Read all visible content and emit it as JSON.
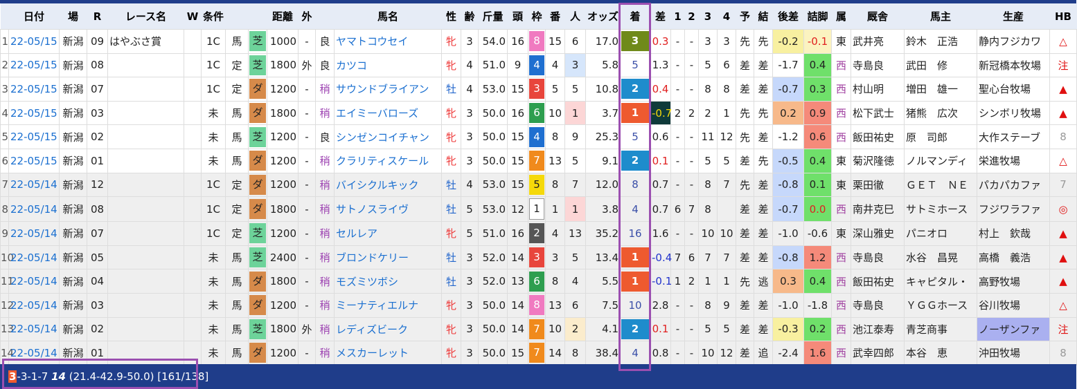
{
  "table": {
    "headers": [
      null,
      "日付",
      "場",
      "R",
      "レース名",
      "W",
      "条件",
      null,
      null,
      "距離",
      "外",
      null,
      "馬名",
      "性",
      "齢",
      "斤量",
      "頭",
      "枠",
      "番",
      "人",
      "オッズ",
      "着",
      "差",
      "1",
      "2",
      "3",
      "4",
      "予",
      "結",
      "後差",
      "詰脚",
      "属",
      "厩舎",
      "馬主",
      "生産",
      "HB"
    ],
    "rows": [
      [
        "1",
        "22-05/15",
        "新潟",
        "09",
        "はやぶさ賞",
        null,
        "1C",
        "馬",
        "芝",
        "1000",
        "-",
        "良",
        "ヤマトコウセイ",
        "牝",
        "3",
        "54.0",
        "16",
        "8",
        "15",
        "6",
        "17.0",
        "3",
        "0.3",
        "-",
        "-",
        "3",
        "3",
        "先",
        "先",
        "-0.2",
        "-0.1",
        "東",
        "武井亮",
        "鈴木　正浩",
        "静内フジカワ",
        "△"
      ],
      [
        "2",
        "22-05/15",
        "新潟",
        "08",
        null,
        null,
        "1C",
        "定",
        "芝",
        "1800",
        "外",
        "良",
        "カツコ",
        "牝",
        "4",
        "51.0",
        "9",
        "4",
        "4",
        "3",
        "5.8",
        "5",
        "1.3",
        "-",
        "-",
        "5",
        "6",
        "差",
        "差",
        "-1.7",
        "0.4",
        "西",
        "寺島良",
        "武田　修",
        "新冠橋本牧場",
        "注"
      ],
      [
        "3",
        "22-05/15",
        "新潟",
        "07",
        null,
        null,
        "1C",
        "定",
        "ダ",
        "1200",
        "-",
        "稍",
        "サウンドブライアン",
        "牡",
        "4",
        "53.0",
        "15",
        "3",
        "5",
        "5",
        "10.8",
        "2",
        "0.4",
        "-",
        "-",
        "8",
        "8",
        "差",
        "差",
        "-0.7",
        "0.3",
        "西",
        "村山明",
        "増田　雄一",
        "聖心台牧場",
        "▲"
      ],
      [
        "4",
        "22-05/15",
        "新潟",
        "03",
        null,
        null,
        "未",
        "馬",
        "ダ",
        "1800",
        "-",
        "稍",
        "エイミーバローズ",
        "牝",
        "3",
        "50.0",
        "16",
        "6",
        "10",
        "1",
        "3.7",
        "1",
        "-0.7",
        "2",
        "2",
        "2",
        "1",
        "先",
        "先",
        "0.2",
        "0.9",
        "西",
        "松下武士",
        "猪熊　広次",
        "シンボリ牧場",
        "▲"
      ],
      [
        "5",
        "22-05/15",
        "新潟",
        "02",
        null,
        null,
        "未",
        "馬",
        "芝",
        "1200",
        "-",
        "良",
        "シンゼンコイチャン",
        "牝",
        "3",
        "50.0",
        "15",
        "4",
        "8",
        "9",
        "25.3",
        "5",
        "0.6",
        "-",
        "-",
        "11",
        "12",
        "先",
        "差",
        "-1.2",
        "0.6",
        "西",
        "飯田祐史",
        "原　司郎",
        "大作ステーブ",
        "8"
      ],
      [
        "6",
        "22-05/15",
        "新潟",
        "01",
        null,
        null,
        "未",
        "馬",
        "ダ",
        "1200",
        "-",
        "稍",
        "クラリティスケール",
        "牝",
        "3",
        "50.0",
        "15",
        "7",
        "13",
        "5",
        "9.1",
        "2",
        "0.1",
        "-",
        "-",
        "5",
        "5",
        "差",
        "先",
        "-0.5",
        "0.4",
        "東",
        "菊沢隆徳",
        "ノルマンディ",
        "栄進牧場",
        "△"
      ],
      [
        "7",
        "22-05/14",
        "新潟",
        "12",
        null,
        null,
        "1C",
        "定",
        "ダ",
        "1200",
        "-",
        "稍",
        "バイシクルキック",
        "牡",
        "4",
        "53.0",
        "15",
        "5",
        "8",
        "7",
        "12.0",
        "8",
        "0.7",
        "-",
        "-",
        "8",
        "7",
        "先",
        "差",
        "-0.8",
        "0.1",
        "東",
        "栗田徹",
        "ＧＥＴ　ＮＥ",
        "パカパカファ",
        "7"
      ],
      [
        "8",
        "22-05/14",
        "新潟",
        "08",
        null,
        null,
        "1C",
        "定",
        "ダ",
        "1800",
        "-",
        "稍",
        "サトノスライヴ",
        "牡",
        "5",
        "53.0",
        "12",
        "1",
        "1",
        "1",
        "3.8",
        "4",
        "0.7",
        "6",
        "7",
        "8",
        null,
        "差",
        "差",
        "-0.7",
        "0.0",
        "西",
        "南井克巳",
        "サトミホース",
        "フジワラファ",
        "◎"
      ],
      [
        "9",
        "22-05/14",
        "新潟",
        "07",
        null,
        null,
        "1C",
        "定",
        "芝",
        "1200",
        "-",
        "稍",
        "セルレア",
        "牝",
        "5",
        "51.0",
        "16",
        "2",
        "4",
        "13",
        "35.2",
        "16",
        "1.6",
        "-",
        "-",
        "10",
        "10",
        "差",
        "差",
        "-1.0",
        "-0.6",
        "東",
        "深山雅史",
        "パニオロ",
        "村上　欽哉",
        "▲"
      ],
      [
        "10",
        "22-05/14",
        "新潟",
        "05",
        null,
        null,
        "未",
        "馬",
        "芝",
        "2400",
        "-",
        "稍",
        "ブロンドケリー",
        "牡",
        "3",
        "52.0",
        "14",
        "3",
        "3",
        "5",
        "13.4",
        "1",
        "-0.4",
        "7",
        "6",
        "7",
        "7",
        "差",
        "差",
        "-0.8",
        "1.2",
        "西",
        "寺島良",
        "水谷　昌晃",
        "高橋　義浩",
        "▲"
      ],
      [
        "11",
        "22-05/14",
        "新潟",
        "04",
        null,
        null,
        "未",
        "馬",
        "ダ",
        "1800",
        "-",
        "稍",
        "モズミツボシ",
        "牡",
        "3",
        "52.0",
        "13",
        "6",
        "8",
        "4",
        "5.5",
        "1",
        "-0.1",
        "1",
        "2",
        "1",
        "1",
        "先",
        "逃",
        "0.3",
        "0.4",
        "西",
        "飯田祐史",
        "キャピタル・",
        "高野牧場",
        "▲"
      ],
      [
        "12",
        "22-05/14",
        "新潟",
        "03",
        null,
        null,
        "未",
        "馬",
        "ダ",
        "1200",
        "-",
        "稍",
        "ミーナティエルナ",
        "牝",
        "3",
        "50.0",
        "14",
        "8",
        "13",
        "6",
        "7.5",
        "10",
        "2.8",
        "-",
        "-",
        "8",
        "9",
        "差",
        "差",
        "-1.0",
        "-1.8",
        "西",
        "寺島良",
        "ＹＧＧホース",
        "谷川牧場",
        "△"
      ],
      [
        "13",
        "22-05/14",
        "新潟",
        "02",
        null,
        null,
        "未",
        "馬",
        "芝",
        "1800",
        "外",
        "稍",
        "レディズビーク",
        "牝",
        "3",
        "50.0",
        "14",
        "7",
        "10",
        "2",
        "4.1",
        "2",
        "0.1",
        "-",
        "-",
        "5",
        "5",
        "差",
        "差",
        "-0.3",
        "0.2",
        "西",
        "池江泰寿",
        "青芝商事",
        "ノーザンファ",
        "注"
      ],
      [
        "14",
        "22-05/14",
        "新潟",
        "01",
        null,
        null,
        "未",
        "馬",
        "ダ",
        "1200",
        "-",
        "稍",
        "メスカーレット",
        "牝",
        "3",
        "50.0",
        "15",
        "7",
        "14",
        "8",
        "38.4",
        "4",
        "0.8",
        "-",
        "-",
        "10",
        "12",
        "差",
        "追",
        "-2.4",
        "1.6",
        "西",
        "武幸四郎",
        "本谷　恵",
        "沖田牧場",
        "8"
      ]
    ]
  },
  "footer": {
    "wins": "3",
    "rest": "-3-1-7",
    "runs": "14",
    "rates": "(21.4-42.9-50.0)",
    "counts": "[161/138]"
  }
}
